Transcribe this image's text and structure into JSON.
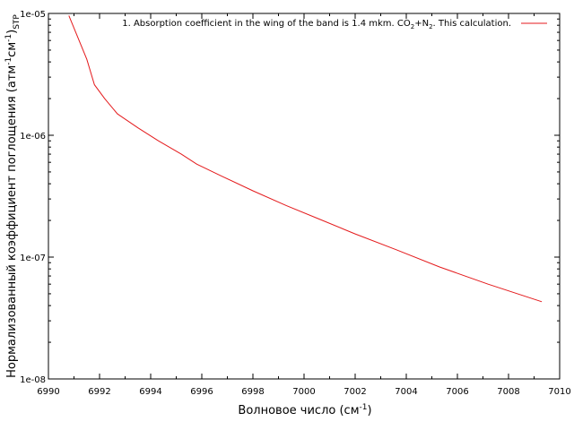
{
  "chart_data": {
    "type": "line",
    "xlabel": {
      "base": "Волновое число (см",
      "sup": "-1",
      "tail": ")"
    },
    "ylabel": {
      "p1": "Нормализованный коэффициент поглощения (атм",
      "sup1": "-1",
      "p2": "см",
      "sup2": "-1",
      "p3": ")",
      "sub": "STP"
    },
    "xlim": [
      6990,
      7010
    ],
    "ylim": [
      1e-08,
      1e-05
    ],
    "yscale": "log",
    "grid": false,
    "legend_position": "top-right",
    "x_ticks": [
      "6990",
      "6992",
      "6994",
      "6996",
      "6998",
      "7000",
      "7002",
      "7004",
      "7006",
      "7008",
      "7010"
    ],
    "y_ticks": [
      "1e-08",
      "1e-07",
      "1e-06",
      "1e-05"
    ],
    "series": [
      {
        "name": "1. Absorption coefficient in the wing of the band is 1.4 mkm. CO2+N2. This calculation.",
        "legend": {
          "t1": "1. Absorption coefficient in the wing of the band is 1.4 mkm. CO",
          "s1": "2",
          "t2": "+N",
          "s2": "2",
          "t3": ". This calculation."
        },
        "color": "#e41a1c",
        "x": [
          6990.8,
          6991.5,
          6991.8,
          6992.2,
          6992.7,
          6993.5,
          6994.3,
          6995.2,
          6995.8,
          6996.8,
          6998.0,
          6999.3,
          7000.6,
          7002.0,
          7003.6,
          7005.3,
          7007.2,
          7009.3
        ],
        "y": [
          9.6e-06,
          4.2e-06,
          2.6e-06,
          2e-06,
          1.5e-06,
          1.15e-06,
          9e-07,
          7e-07,
          5.8e-07,
          4.6e-07,
          3.5e-07,
          2.65e-07,
          2.05e-07,
          1.55e-07,
          1.15e-07,
          8.3e-08,
          6e-08,
          4.3e-08
        ]
      }
    ]
  }
}
